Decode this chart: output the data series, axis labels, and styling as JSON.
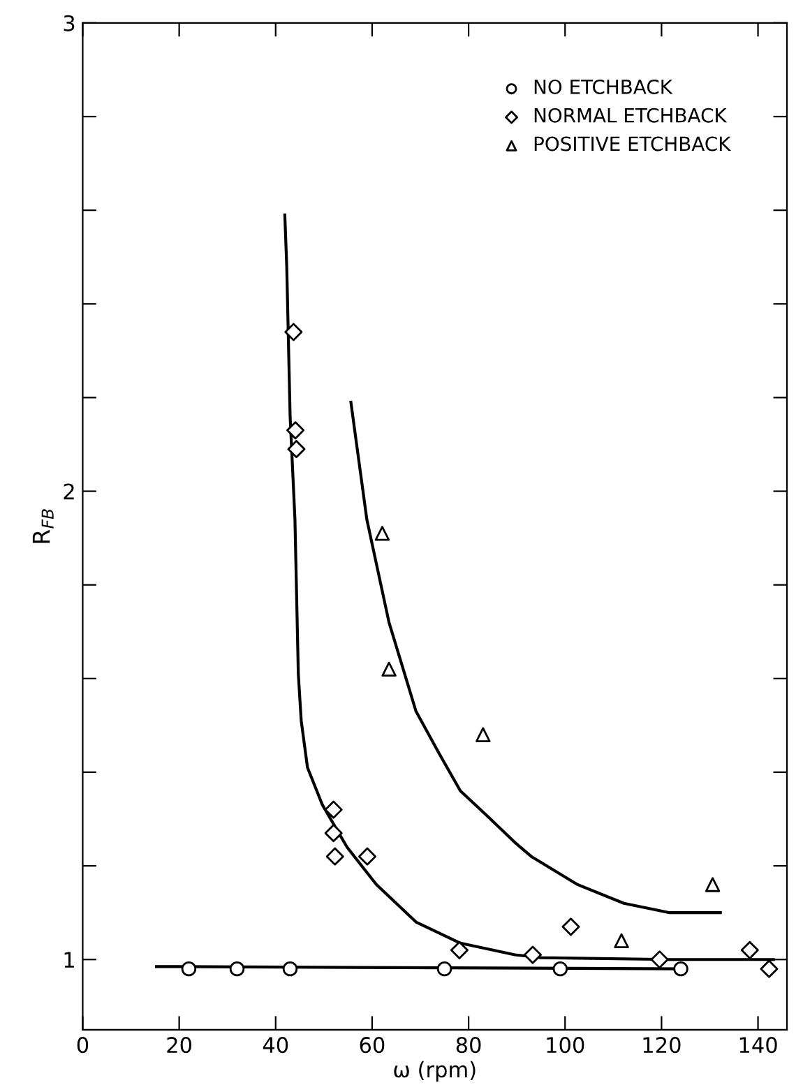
{
  "chart_data": {
    "type": "scatter",
    "xlabel": "ω (rpm)",
    "ylabel": "R$_{FB}$",
    "xlim": [
      0,
      146
    ],
    "ylim": [
      0.85,
      3
    ],
    "xticks": [
      0,
      20,
      40,
      60,
      80,
      100,
      120,
      140
    ],
    "yticks": [
      1,
      {
        "value": 1.2,
        "label": null
      },
      {
        "value": 1.4,
        "label": null
      },
      {
        "value": 1.6,
        "label": null
      },
      {
        "value": 1.8,
        "label": null
      },
      2,
      {
        "value": 2.2,
        "label": null
      },
      {
        "value": 2.4,
        "label": null
      },
      {
        "value": 2.6,
        "label": null
      },
      {
        "value": 2.8,
        "label": null
      },
      3
    ],
    "grid": false,
    "legend": "top right",
    "series": [
      {
        "name": "NO ETCHBACK",
        "marker": "circle",
        "color": "#000000",
        "x": [
          22,
          32,
          43,
          75,
          99,
          124
        ],
        "values": [
          0.98,
          0.98,
          0.98,
          0.98,
          0.98,
          0.98
        ]
      },
      {
        "name": "NORMAL ETCHBACK",
        "marker": "diamond",
        "color": "#000000",
        "x": [
          43.7,
          44.1,
          44.3,
          52,
          52,
          52.3,
          59,
          78.1,
          93.3,
          101.2,
          119.6,
          138.3,
          142.3
        ],
        "values": [
          2.34,
          2.13,
          2.09,
          1.32,
          1.27,
          1.22,
          1.22,
          1.02,
          1.01,
          1.07,
          1.0,
          1.02,
          0.98
        ]
      },
      {
        "name": "POSITIVE ETCHBACK",
        "marker": "triangle",
        "color": "#000000",
        "x": [
          62.1,
          63.5,
          83,
          111.7,
          130.6
        ],
        "values": [
          1.91,
          1.62,
          1.48,
          1.04,
          1.16
        ]
      },
      {
        "type": "line",
        "marker": "none",
        "line_style": "solid",
        "color": "#000000",
        "x": [
          15.3,
          125
        ],
        "values": [
          0.985,
          0.98
        ]
      },
      {
        "type": "line",
        "marker": "none",
        "line_style": "solid",
        "color": "#000000",
        "x": [
          41.9,
          42.3,
          43,
          44,
          44.7,
          45.3,
          46.6,
          49.7,
          54.8,
          60.9,
          69.1,
          78.3,
          89.6,
          95,
          121.7,
          143.2
        ],
        "values": [
          2.59,
          2.48,
          2.16,
          1.94,
          1.61,
          1.51,
          1.41,
          1.33,
          1.24,
          1.16,
          1.08,
          1.035,
          1.01,
          1.004,
          1.0,
          1.0
        ]
      },
      {
        "type": "line",
        "marker": "none",
        "line_style": "solid",
        "color": "#000000",
        "x": [
          55.6,
          58.9,
          63.5,
          69.1,
          73.9,
          78.3,
          83.5,
          89.6,
          93,
          102.6,
          112.2,
          121.7,
          132.2
        ],
        "values": [
          2.19,
          1.94,
          1.72,
          1.53,
          1.44,
          1.36,
          1.31,
          1.25,
          1.22,
          1.16,
          1.12,
          1.1,
          1.1
        ]
      }
    ]
  }
}
